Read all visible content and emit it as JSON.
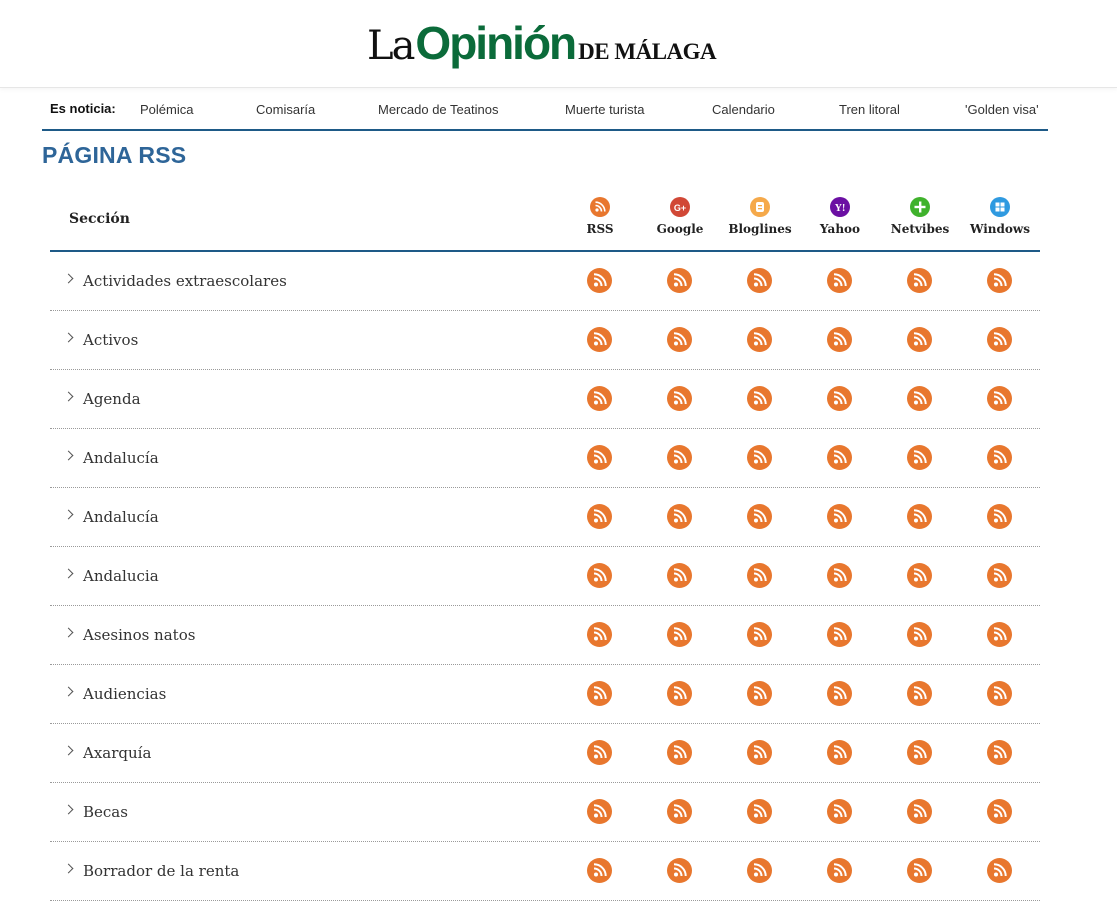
{
  "header": {
    "logo_la": "La",
    "logo_opinion": "Opinión",
    "logo_de": "DE MÁLAGA"
  },
  "trending": {
    "label": "Es noticia:",
    "links": [
      "Polémica",
      "Comisaría",
      "Mercado de Teatinos",
      "Muerte turista",
      "Calendario",
      "Tren litoral",
      "'Golden visa'"
    ]
  },
  "page_title": "PÁGINA RSS",
  "table": {
    "section_header": "Sección",
    "columns": [
      {
        "label": "RSS",
        "icon": "rss-icon",
        "color": "#e8772e"
      },
      {
        "label": "Google",
        "icon": "google-plus-icon",
        "color": "#d14836"
      },
      {
        "label": "Bloglines",
        "icon": "bloglines-icon",
        "color": "#f5a94a"
      },
      {
        "label": "Yahoo",
        "icon": "yahoo-icon",
        "color": "#6b0fa3"
      },
      {
        "label": "Netvibes",
        "icon": "netvibes-plus-icon",
        "color": "#3fb22c"
      },
      {
        "label": "Windows",
        "icon": "windows-icon",
        "color": "#2f9ae0"
      }
    ],
    "rows": [
      "Actividades extraescolares",
      "Activos",
      "Agenda",
      "Andalucía",
      "Andalucía",
      "Andalucia",
      "Asesinos natos",
      "Audiencias",
      "Axarquía",
      "Becas",
      "Borrador de la renta"
    ]
  },
  "colors": {
    "accent_blue": "#1e5a87",
    "title_blue": "#2e6598",
    "brand_green": "#0b6b3a",
    "feed_orange": "#e8772e"
  }
}
